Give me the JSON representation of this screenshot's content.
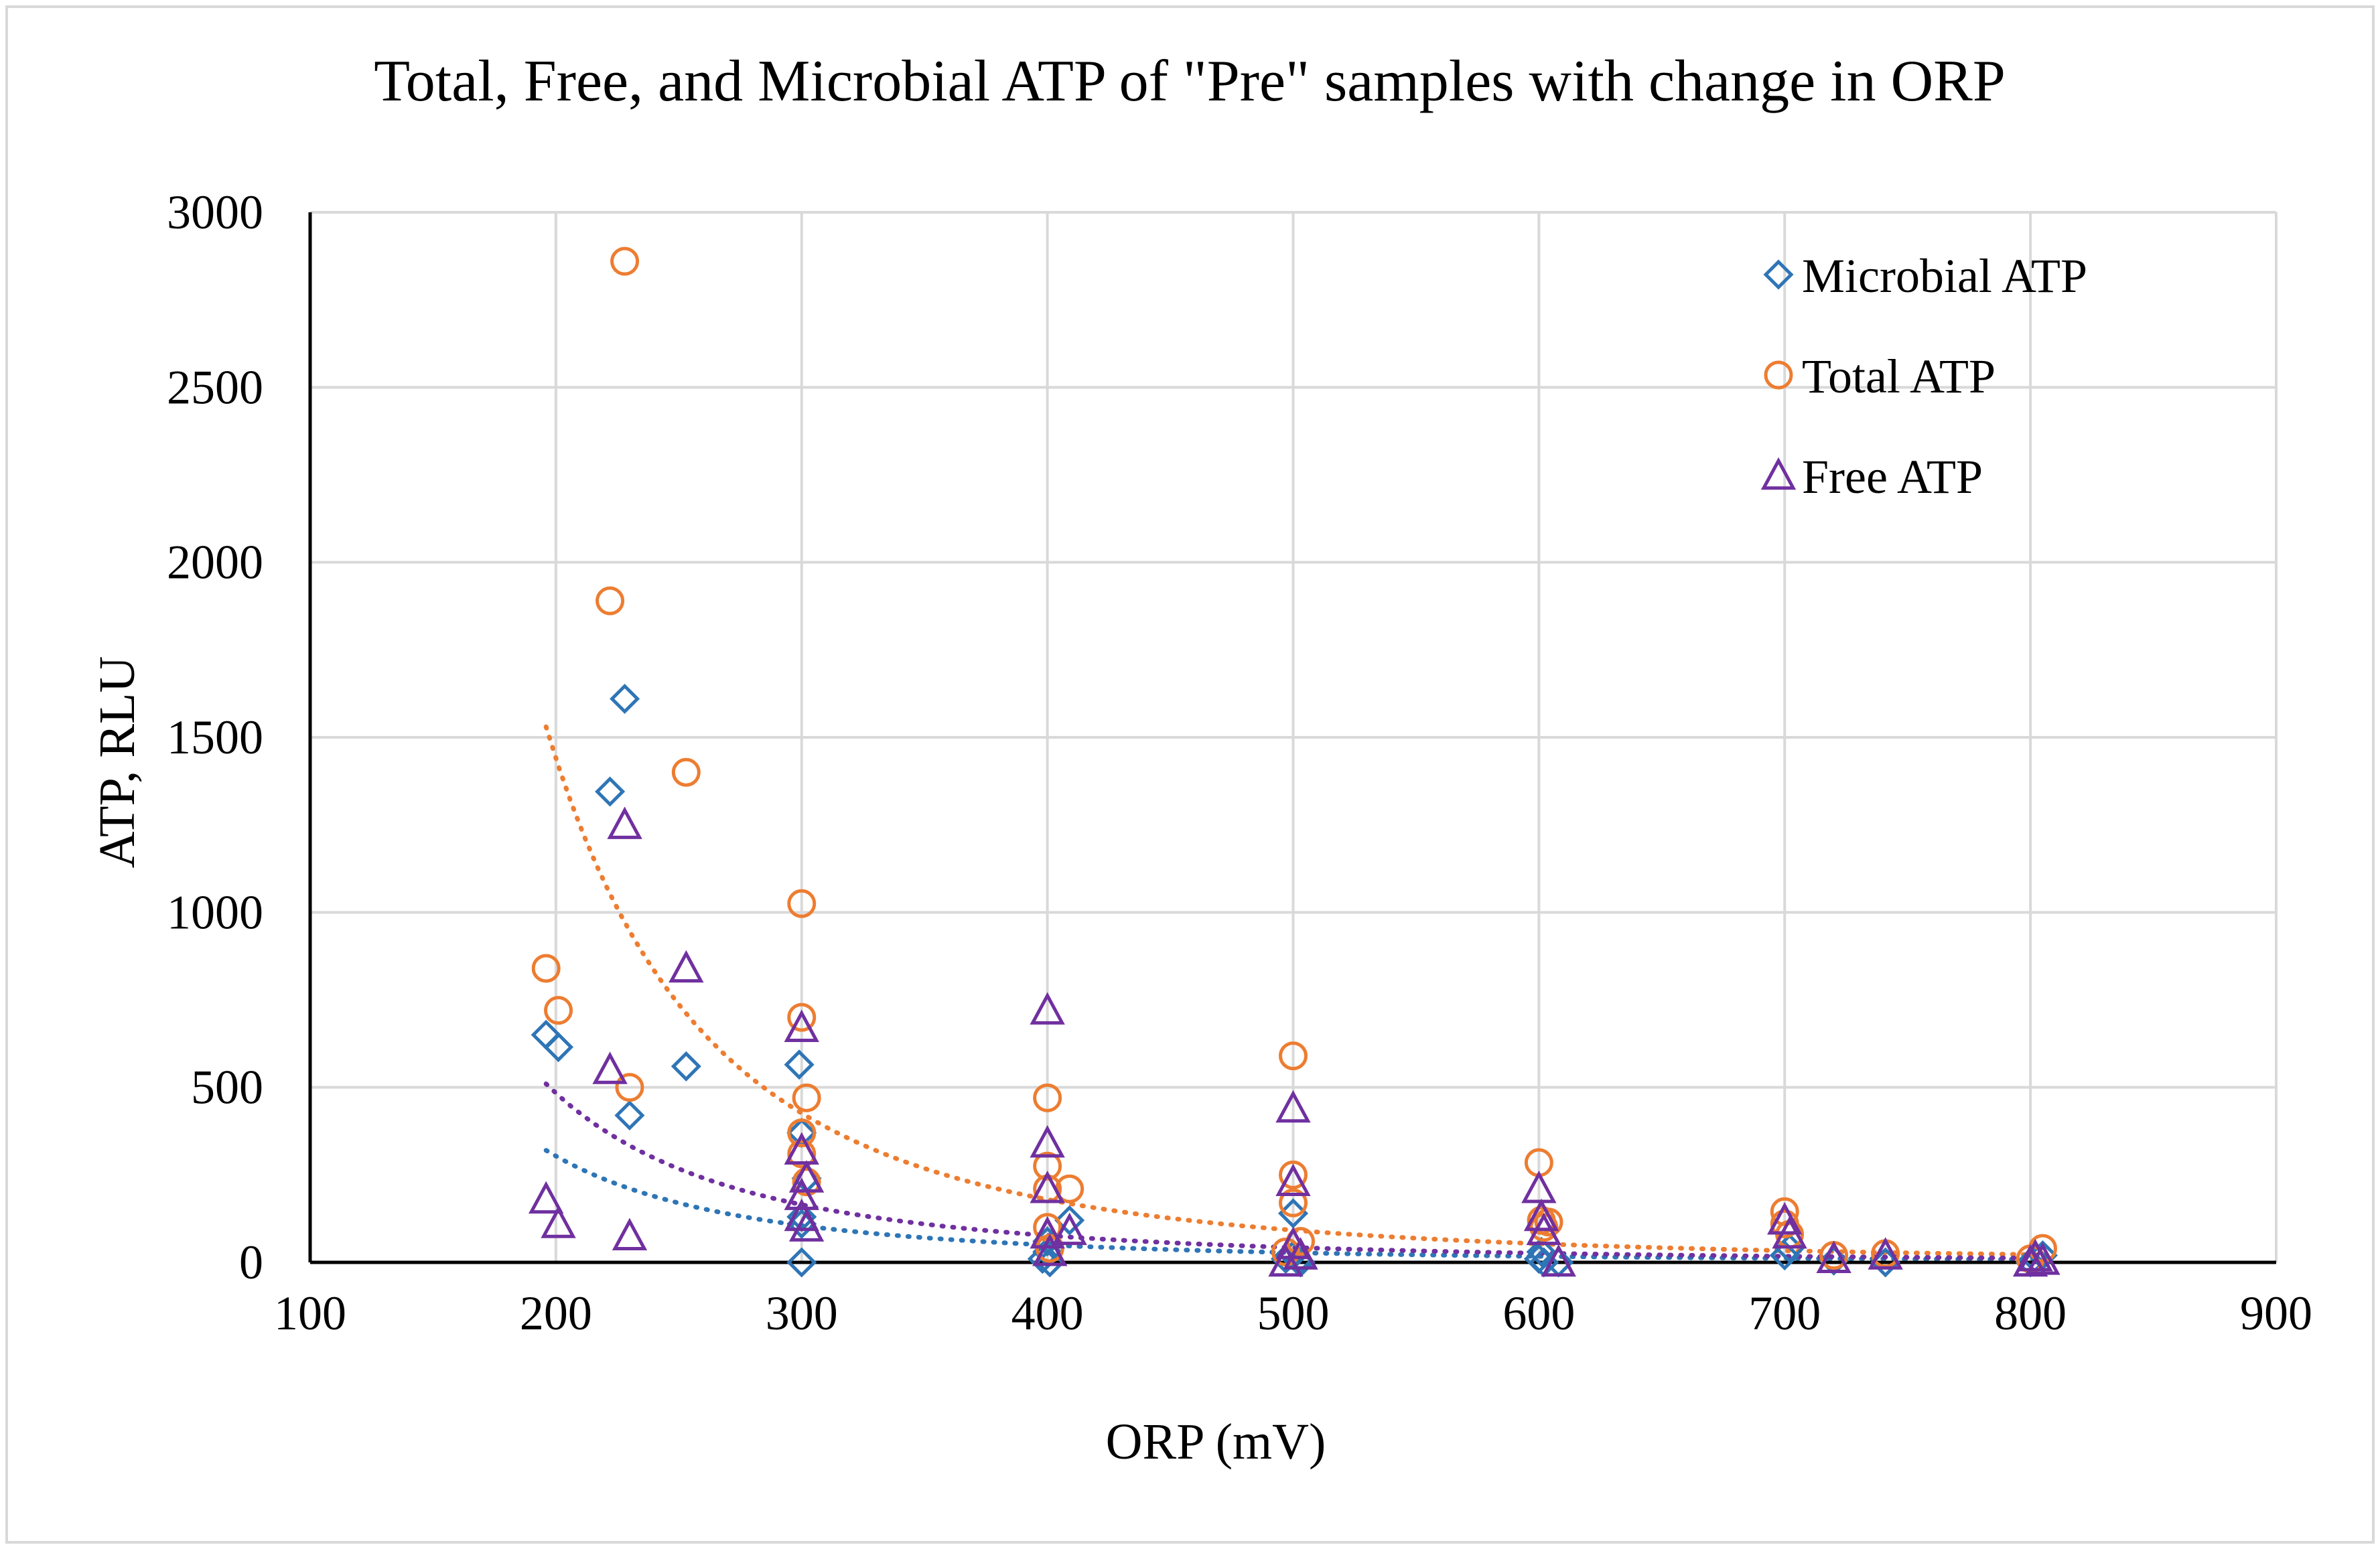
{
  "chart_data": {
    "type": "scatter",
    "title": "Total, Free, and Microbial ATP of \"Pre\" samples with change in ORP",
    "xlabel": "ORP (mV)",
    "ylabel": "ATP, RLU",
    "xlim": [
      100,
      900
    ],
    "ylim": [
      0,
      3000
    ],
    "x_ticks": [
      100,
      200,
      300,
      400,
      500,
      600,
      700,
      800,
      900
    ],
    "y_ticks": [
      0,
      500,
      1000,
      1500,
      2000,
      2500,
      3000
    ],
    "x_tick_labels": [
      "100",
      "200",
      "300",
      "400",
      "500",
      "600",
      "700",
      "800",
      "900"
    ],
    "y_tick_labels": [
      "0",
      "500",
      "1000",
      "1500",
      "2000",
      "2500",
      "3000"
    ],
    "grid": true,
    "legend_position": "top-right",
    "series": [
      {
        "name": "Microbial ATP",
        "marker": "diamond",
        "color": "#2e75b6",
        "trendline": {
          "type": "power",
          "range": [
            196,
            805
          ],
          "start_y": 320,
          "end_y": 8
        },
        "points": [
          [
            196,
            650
          ],
          [
            201,
            615
          ],
          [
            222,
            1345
          ],
          [
            228,
            1610
          ],
          [
            230,
            420
          ],
          [
            253,
            560
          ],
          [
            299,
            565
          ],
          [
            300,
            370
          ],
          [
            300,
            130
          ],
          [
            300,
            110
          ],
          [
            300,
            0
          ],
          [
            302,
            240
          ],
          [
            398,
            10
          ],
          [
            400,
            30
          ],
          [
            400,
            60
          ],
          [
            401,
            0
          ],
          [
            409,
            120
          ],
          [
            497,
            10
          ],
          [
            500,
            140
          ],
          [
            500,
            20
          ],
          [
            502,
            5
          ],
          [
            503,
            0
          ],
          [
            600,
            10
          ],
          [
            601,
            30
          ],
          [
            602,
            0
          ],
          [
            608,
            0
          ],
          [
            700,
            20
          ],
          [
            702,
            40
          ],
          [
            720,
            5
          ],
          [
            741,
            0
          ],
          [
            800,
            0
          ],
          [
            802,
            10
          ],
          [
            805,
            20
          ]
        ]
      },
      {
        "name": "Total ATP",
        "marker": "circle",
        "color": "#ed7d31",
        "trendline": {
          "type": "power",
          "range": [
            196,
            805
          ],
          "start_y": 1530,
          "end_y": 22
        },
        "points": [
          [
            196,
            840
          ],
          [
            201,
            720
          ],
          [
            222,
            1890
          ],
          [
            228,
            2860
          ],
          [
            230,
            500
          ],
          [
            253,
            1400
          ],
          [
            300,
            1025
          ],
          [
            300,
            700
          ],
          [
            300,
            370
          ],
          [
            300,
            310
          ],
          [
            302,
            470
          ],
          [
            302,
            230
          ],
          [
            400,
            470
          ],
          [
            400,
            275
          ],
          [
            400,
            210
          ],
          [
            400,
            100
          ],
          [
            401,
            40
          ],
          [
            409,
            210
          ],
          [
            497,
            30
          ],
          [
            500,
            590
          ],
          [
            500,
            250
          ],
          [
            500,
            170
          ],
          [
            503,
            60
          ],
          [
            600,
            285
          ],
          [
            601,
            120
          ],
          [
            602,
            100
          ],
          [
            604,
            115
          ],
          [
            700,
            145
          ],
          [
            700,
            110
          ],
          [
            702,
            80
          ],
          [
            720,
            20
          ],
          [
            741,
            25
          ],
          [
            800,
            10
          ],
          [
            805,
            40
          ]
        ]
      },
      {
        "name": "Free ATP",
        "marker": "triangle",
        "color": "#7030a0",
        "trendline": {
          "type": "power",
          "range": [
            196,
            805
          ],
          "start_y": 510,
          "end_y": 12
        },
        "points": [
          [
            196,
            180
          ],
          [
            201,
            110
          ],
          [
            222,
            550
          ],
          [
            228,
            1250
          ],
          [
            230,
            75
          ],
          [
            253,
            840
          ],
          [
            300,
            670
          ],
          [
            300,
            320
          ],
          [
            300,
            190
          ],
          [
            300,
            130
          ],
          [
            302,
            240
          ],
          [
            302,
            100
          ],
          [
            400,
            720
          ],
          [
            400,
            340
          ],
          [
            400,
            210
          ],
          [
            400,
            80
          ],
          [
            401,
            30
          ],
          [
            409,
            90
          ],
          [
            497,
            0
          ],
          [
            500,
            440
          ],
          [
            500,
            230
          ],
          [
            500,
            50
          ],
          [
            503,
            20
          ],
          [
            600,
            210
          ],
          [
            601,
            130
          ],
          [
            602,
            90
          ],
          [
            608,
            0
          ],
          [
            700,
            120
          ],
          [
            702,
            80
          ],
          [
            720,
            10
          ],
          [
            741,
            20
          ],
          [
            800,
            0
          ],
          [
            802,
            15
          ],
          [
            805,
            5
          ]
        ]
      }
    ]
  }
}
